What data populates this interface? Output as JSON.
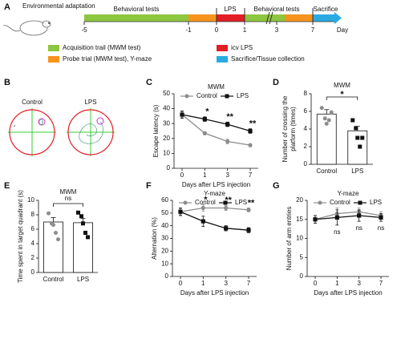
{
  "panel_labels": [
    "A",
    "B",
    "C",
    "D",
    "E",
    "F",
    "G"
  ],
  "timeline": {
    "title": "Environmental adaptation",
    "ticks": [
      "-5",
      "-1",
      "0",
      "1",
      "3",
      "7"
    ],
    "unit": "Day",
    "phases": [
      "Behavioral tests",
      "LPS",
      "Behavioral tests",
      "Sacrifice"
    ],
    "legend": [
      "Acquisition trail (MWM test)",
      "Probe trial (MWM test), Y-maze",
      "icv LPS",
      "Sacrifice/Tissue collection"
    ]
  },
  "panel_b": {
    "labels": [
      "Control",
      "LPS"
    ]
  },
  "chart_data": [
    {
      "type": "line",
      "title": "MWM",
      "xlabel": "Days after LPS injection",
      "ylabel": "Escape latency (s)",
      "categories": [
        "0",
        "1",
        "3",
        "7"
      ],
      "ylim": [
        0,
        50
      ],
      "yticks": [
        0,
        10,
        20,
        30,
        40,
        50
      ],
      "series": [
        {
          "name": "Control",
          "color": "#8c8c8c",
          "marker": "circle",
          "values": [
            36,
            23.5,
            18,
            15.5
          ],
          "errors": [
            2,
            1,
            1.5,
            1
          ]
        },
        {
          "name": "LPS",
          "color": "#111111",
          "marker": "square",
          "values": [
            36,
            33,
            29.5,
            25
          ],
          "errors": [
            2.5,
            1.5,
            1.5,
            1.5
          ]
        }
      ],
      "annotations": [
        null,
        "*",
        "**",
        "**"
      ]
    },
    {
      "type": "bar",
      "title": "MWM",
      "ylabel": [
        "Number of crossing the",
        "platform (times)"
      ],
      "categories": [
        "Control",
        "LPS"
      ],
      "ylim": [
        0,
        8
      ],
      "yticks": [
        0,
        2,
        4,
        6,
        8
      ],
      "values": [
        5.7,
        3.8
      ],
      "errors": [
        0.5,
        0.5
      ],
      "colors": [
        "#8c8c8c",
        "#111111"
      ],
      "points": [
        [
          6.4,
          5.2,
          4.6,
          5.0,
          5.9
        ],
        [
          5.0,
          4.1,
          3.0,
          2.0,
          3.0
        ]
      ],
      "significance": "*"
    },
    {
      "type": "bar",
      "title": "MWM",
      "ylabel": "Time spent in target quadrant (s)",
      "categories": [
        "Control",
        "LPS"
      ],
      "ylim": [
        0,
        10
      ],
      "yticks": [
        0,
        2,
        4,
        6,
        8,
        10
      ],
      "values": [
        7.0,
        6.9
      ],
      "errors": [
        0.6,
        0.6
      ],
      "colors": [
        "#8c8c8c",
        "#111111"
      ],
      "points": [
        [
          8.2,
          6.8,
          6.6,
          5.5,
          4.6
        ],
        [
          8.3,
          7.8,
          6.8,
          5.5,
          4.9
        ]
      ],
      "significance": "ns"
    },
    {
      "type": "line",
      "title": "Y-maze",
      "xlabel": "Days after LPS injection",
      "ylabel": "Alternation (%)",
      "categories": [
        "0",
        "1",
        "3",
        "7"
      ],
      "ylim": [
        0,
        60
      ],
      "yticks": [
        0,
        10,
        20,
        30,
        40,
        50,
        60
      ],
      "series": [
        {
          "name": "Control",
          "color": "#8c8c8c",
          "marker": "circle",
          "values": [
            51,
            54,
            54,
            52.5
          ],
          "errors": [
            2.5,
            2.5,
            2,
            1.5
          ]
        },
        {
          "name": "LPS",
          "color": "#111111",
          "marker": "square",
          "values": [
            51,
            43.5,
            38,
            36.5
          ],
          "errors": [
            3,
            4,
            2,
            2
          ]
        }
      ],
      "annotations": [
        null,
        "*",
        "**",
        "**"
      ]
    },
    {
      "type": "line",
      "title": "Y-maze",
      "xlabel": "Days after LPS injection",
      "ylabel": "Number of arm entries",
      "categories": [
        "0",
        "1",
        "3",
        "7"
      ],
      "ylim": [
        0,
        20
      ],
      "yticks": [
        0,
        5,
        10,
        15,
        20
      ],
      "series": [
        {
          "name": "Control",
          "color": "#8c8c8c",
          "marker": "circle",
          "values": [
            15,
            16.5,
            17,
            16
          ],
          "errors": [
            1,
            1.5,
            1,
            1
          ]
        },
        {
          "name": "LPS",
          "color": "#111111",
          "marker": "square",
          "values": [
            15,
            15.5,
            16,
            15.5
          ],
          "errors": [
            1,
            2,
            1.5,
            1
          ]
        }
      ],
      "annotations": [
        null,
        "ns",
        "ns",
        "ns"
      ]
    }
  ]
}
